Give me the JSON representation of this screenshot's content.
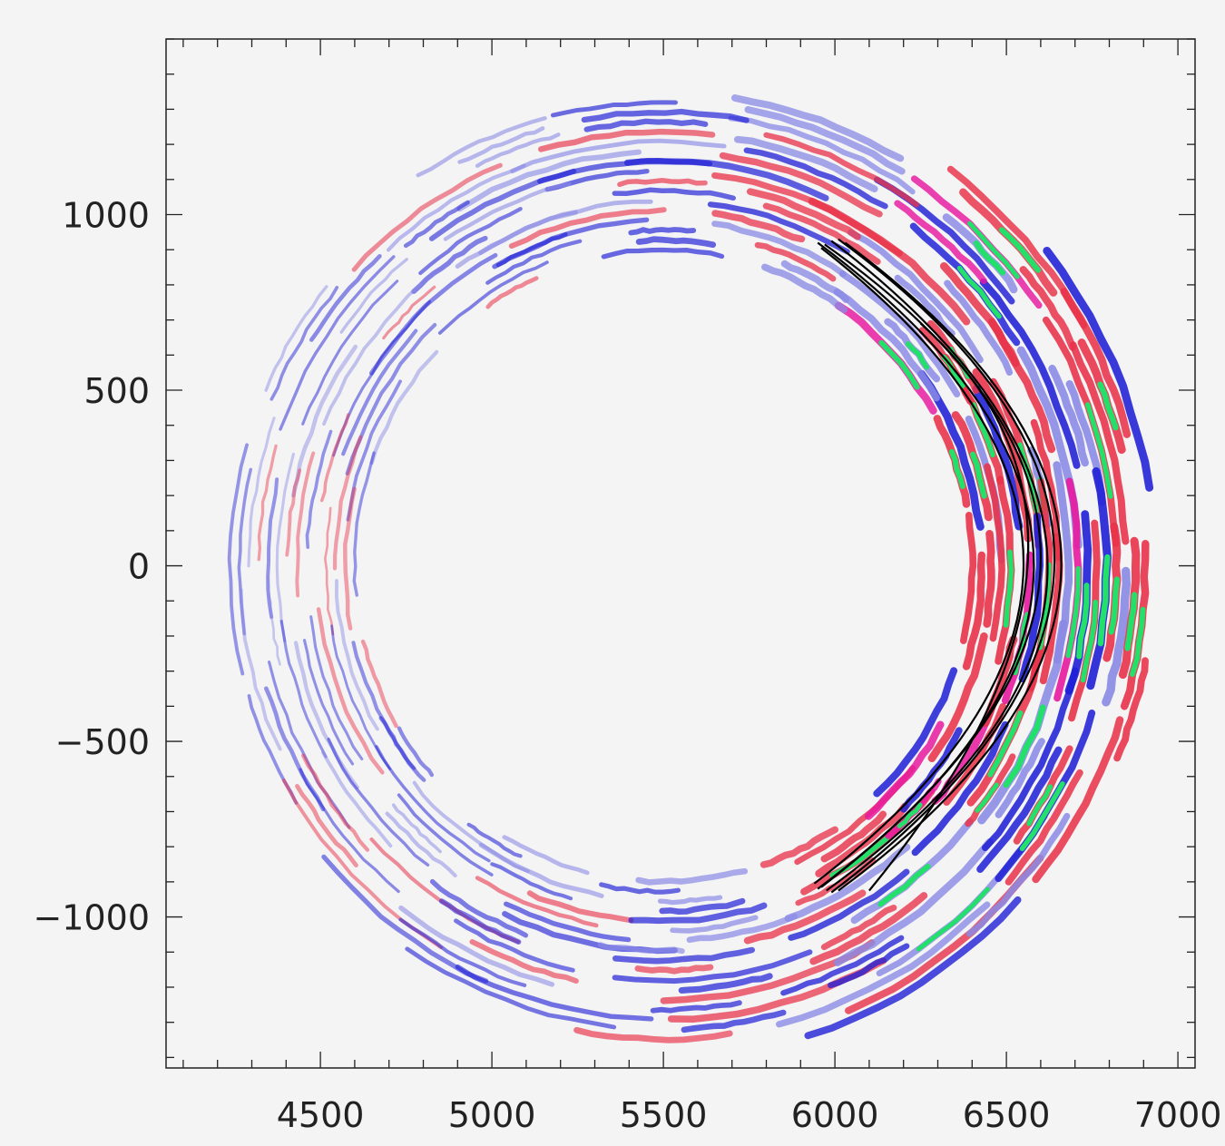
{
  "chart_data": {
    "type": "scatter",
    "title": "",
    "xlabel": "",
    "ylabel": "",
    "xlim": [
      4050,
      7050
    ],
    "ylim": [
      -1430,
      1500
    ],
    "xticks": [
      4500,
      5000,
      5500,
      6000,
      6500,
      7000
    ],
    "xtick_labels": [
      "4500",
      "5000",
      "5500",
      "6000",
      "6500",
      "7000"
    ],
    "yticks": [
      -1000,
      -500,
      0,
      500,
      1000
    ],
    "ytick_labels": [
      "−1000",
      "−500",
      "0",
      "500",
      "1000"
    ],
    "x_minor_step": 100,
    "y_minor_step": 100,
    "grid": false,
    "legend": "none",
    "annulus": {
      "center": [
        5500,
        0
      ],
      "inner_radius": 900,
      "outer_radius_right": 1450,
      "outer_radius_left": 1270,
      "streak_spacing": 28
    },
    "colors": {
      "background": "#f4f4f4",
      "blue": "#1f1fd6",
      "light_blue": "#8a8ae6",
      "red": "#e8334a",
      "magenta": "#e81aa0",
      "green": "#22e06a",
      "curves": "#000000"
    },
    "curves": [
      {
        "top": [
          5950,
          920
        ],
        "apex": [
          6580,
          0
        ],
        "bottom": [
          5950,
          -920
        ]
      },
      {
        "top": [
          5970,
          915
        ],
        "apex": [
          6600,
          20
        ],
        "bottom": [
          5960,
          -915
        ]
      },
      {
        "top": [
          5990,
          925
        ],
        "apex": [
          6620,
          -10
        ],
        "bottom": [
          5975,
          -925
        ]
      },
      {
        "top": [
          6010,
          930
        ],
        "apex": [
          6640,
          10
        ],
        "bottom": [
          5990,
          -930
        ]
      },
      {
        "top": [
          6030,
          920
        ],
        "apex": [
          6660,
          0
        ],
        "bottom": [
          6010,
          -925
        ]
      },
      {
        "top": [
          6250,
          690
        ],
        "apex": [
          6560,
          -20
        ],
        "bottom": [
          6100,
          -925
        ]
      },
      {
        "top": [
          5960,
          905
        ],
        "apex": [
          6550,
          0
        ],
        "bottom": [
          5940,
          -905
        ]
      }
    ]
  }
}
